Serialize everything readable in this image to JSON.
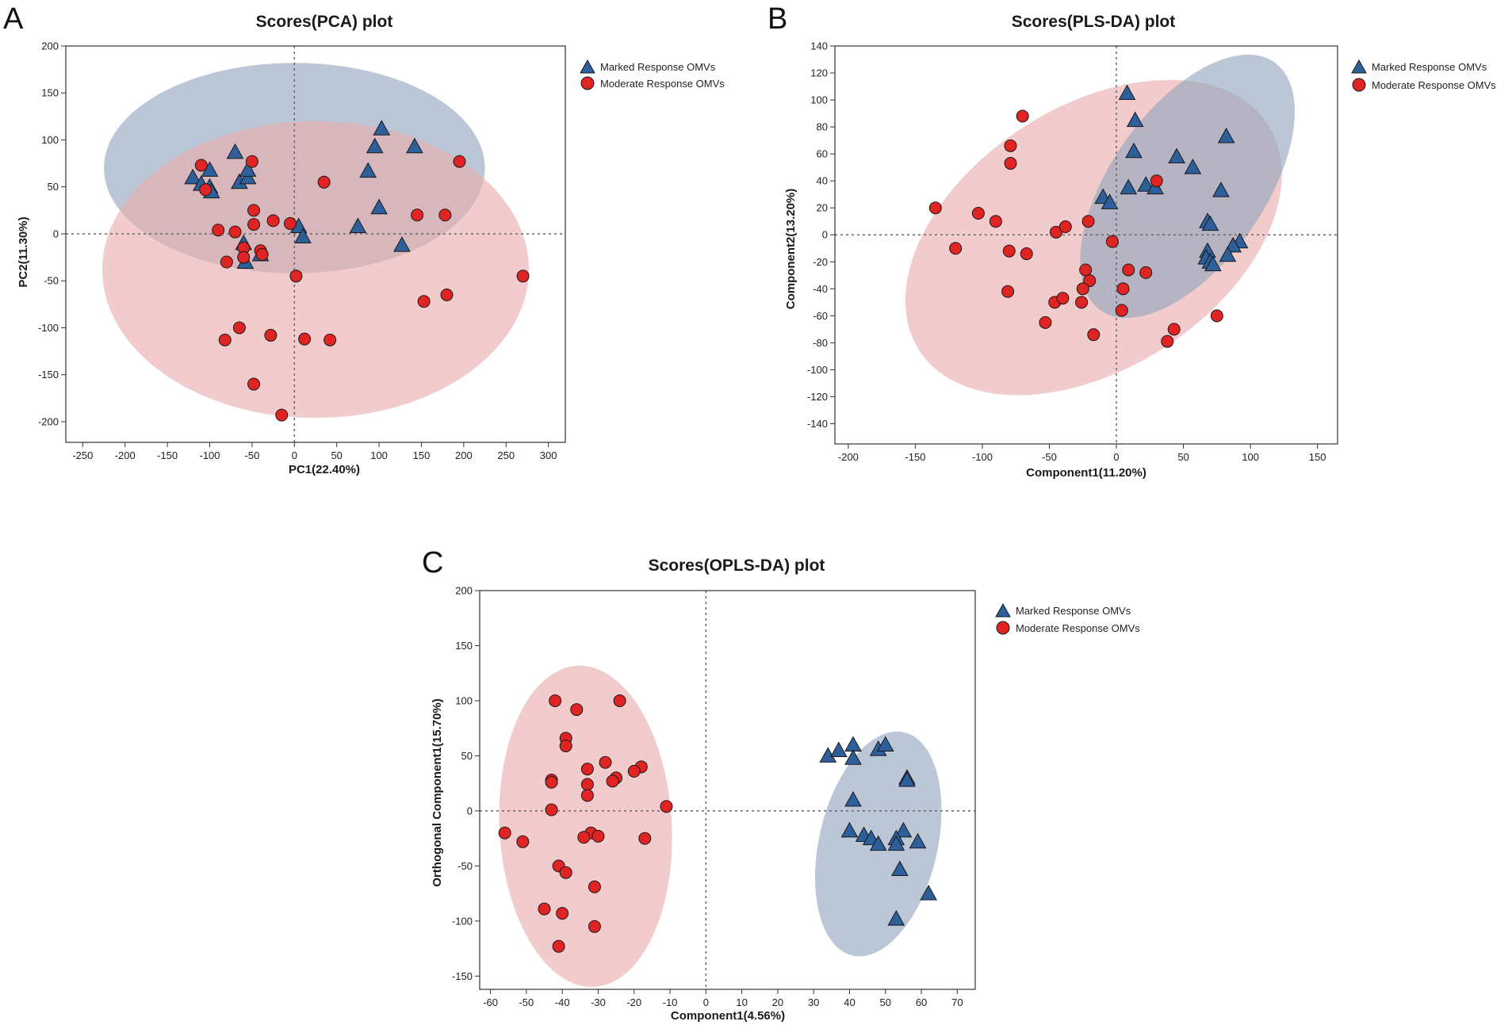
{
  "colors": {
    "marked_fill": "#2d5f9a",
    "moderate_fill": "#e02424",
    "marked_ellipse": "#8ea2bd",
    "moderate_ellipse": "#e9aaaa",
    "frame": "#333333",
    "dash": "#666666"
  },
  "chart_data": [
    {
      "type": "scatter",
      "panel_letter": "A",
      "title": "Scores(PCA) plot",
      "xlabel": "PC1(22.40%)",
      "ylabel": "PC2(11.30%)",
      "xlim": [
        -270,
        320
      ],
      "ylim": [
        -222,
        200
      ],
      "xticks": [
        -250,
        -200,
        -150,
        -100,
        -50,
        0,
        50,
        100,
        150,
        200,
        250,
        300
      ],
      "yticks": [
        200,
        150,
        100,
        50,
        0,
        -50,
        -100,
        -150,
        -200
      ],
      "legend": [
        "Marked Response OMVs",
        "Moderate Response OMVs"
      ],
      "legend_position": "top-right",
      "series": [
        {
          "name": "Marked Response OMVs",
          "marker": "triangle",
          "points": [
            [
              -120,
              60
            ],
            [
              -110,
              53
            ],
            [
              -100,
              68
            ],
            [
              -100,
              50
            ],
            [
              -98,
              45
            ],
            [
              -70,
              87
            ],
            [
              -65,
              55
            ],
            [
              -55,
              60
            ],
            [
              -55,
              68
            ],
            [
              -60,
              -10
            ],
            [
              -58,
              -30
            ],
            [
              -40,
              -22
            ],
            [
              5,
              8
            ],
            [
              10,
              -3
            ],
            [
              75,
              8
            ],
            [
              87,
              67
            ],
            [
              95,
              93
            ],
            [
              103,
              112
            ],
            [
              100,
              28
            ],
            [
              142,
              93
            ],
            [
              127,
              -12
            ]
          ]
        },
        {
          "name": "Moderate Response OMVs",
          "marker": "circle",
          "points": [
            [
              -110,
              73
            ],
            [
              -105,
              47
            ],
            [
              -90,
              4
            ],
            [
              -80,
              -30
            ],
            [
              -70,
              2
            ],
            [
              -60,
              -15
            ],
            [
              -60,
              -25
            ],
            [
              -50,
              77
            ],
            [
              -48,
              25
            ],
            [
              -48,
              10
            ],
            [
              -40,
              -18
            ],
            [
              -38,
              -22
            ],
            [
              -25,
              14
            ],
            [
              -5,
              11
            ],
            [
              2,
              -45
            ],
            [
              35,
              55
            ],
            [
              145,
              20
            ],
            [
              178,
              20
            ],
            [
              195,
              77
            ],
            [
              270,
              -45
            ],
            [
              153,
              -72
            ],
            [
              180,
              -65
            ],
            [
              -65,
              -100
            ],
            [
              -82,
              -113
            ],
            [
              -28,
              -108
            ],
            [
              12,
              -112
            ],
            [
              42,
              -113
            ],
            [
              -48,
              -160
            ],
            [
              -15,
              -193
            ]
          ]
        }
      ],
      "ellipses": [
        {
          "series": "Marked Response OMVs",
          "cx": 0,
          "cy": 70,
          "rx": 225,
          "ry": 112
        },
        {
          "series": "Moderate Response OMVs",
          "cx": 25,
          "cy": -38,
          "rx": 252,
          "ry": 158
        }
      ]
    },
    {
      "type": "scatter",
      "panel_letter": "B",
      "title": "Scores(PLS-DA) plot",
      "xlabel": "Component1(11.20%)",
      "ylabel": "Component2(13.20%)",
      "xlim": [
        -210,
        165
      ],
      "ylim": [
        -155,
        140
      ],
      "xticks": [
        -200,
        -150,
        -100,
        -50,
        0,
        50,
        100,
        150
      ],
      "yticks": [
        140,
        120,
        100,
        80,
        60,
        40,
        20,
        0,
        -20,
        -40,
        -60,
        -80,
        -100,
        -120,
        -140
      ],
      "legend": [
        "Marked Response OMVs",
        "Moderate Response OMVs"
      ],
      "legend_position": "top-right",
      "series": [
        {
          "name": "Marked Response OMVs",
          "marker": "triangle",
          "points": [
            [
              8,
              105
            ],
            [
              14,
              85
            ],
            [
              82,
              73
            ],
            [
              13,
              62
            ],
            [
              45,
              58
            ],
            [
              57,
              50
            ],
            [
              9,
              35
            ],
            [
              22,
              37
            ],
            [
              29,
              35
            ],
            [
              78,
              33
            ],
            [
              -10,
              28
            ],
            [
              -5,
              24
            ],
            [
              68,
              10
            ],
            [
              70,
              8
            ],
            [
              92,
              -5
            ],
            [
              87,
              -8
            ],
            [
              68,
              -12
            ],
            [
              67,
              -17
            ],
            [
              70,
              -20
            ],
            [
              72,
              -22
            ],
            [
              83,
              -15
            ]
          ]
        },
        {
          "name": "Moderate Response OMVs",
          "marker": "circle",
          "points": [
            [
              -70,
              88
            ],
            [
              -79,
              66
            ],
            [
              -79,
              53
            ],
            [
              -135,
              20
            ],
            [
              -103,
              16
            ],
            [
              -90,
              10
            ],
            [
              -120,
              -10
            ],
            [
              -80,
              -12
            ],
            [
              -67,
              -14
            ],
            [
              -45,
              2
            ],
            [
              -38,
              6
            ],
            [
              -21,
              10
            ],
            [
              -3,
              -5
            ],
            [
              30,
              40
            ],
            [
              -23,
              -26
            ],
            [
              -20,
              -34
            ],
            [
              -25,
              -40
            ],
            [
              -26,
              -50
            ],
            [
              -81,
              -42
            ],
            [
              -46,
              -50
            ],
            [
              -40,
              -47
            ],
            [
              -53,
              -65
            ],
            [
              -17,
              -74
            ],
            [
              9,
              -26
            ],
            [
              22,
              -28
            ],
            [
              5,
              -40
            ],
            [
              4,
              -56
            ],
            [
              43,
              -70
            ],
            [
              38,
              -79
            ],
            [
              75,
              -60
            ]
          ]
        }
      ],
      "ellipses": [
        {
          "series": "Moderate Response OMVs",
          "cx": -17,
          "cy": -2,
          "rx": 155,
          "ry": 97,
          "angle": 33
        },
        {
          "series": "Marked Response OMVs",
          "cx": 53,
          "cy": 36,
          "rx": 113,
          "ry": 57,
          "angle": 55
        }
      ]
    },
    {
      "type": "scatter",
      "panel_letter": "C",
      "title": "Scores(OPLS-DA) plot",
      "xlabel": "Component1(4.56%)",
      "ylabel": "Orthogonal Component1(15.70%)",
      "xlim": [
        -63,
        75
      ],
      "ylim": [
        -162,
        200
      ],
      "xticks": [
        -60,
        -50,
        -40,
        -30,
        -20,
        -10,
        0,
        10,
        20,
        30,
        40,
        50,
        60,
        70
      ],
      "yticks": [
        200,
        150,
        100,
        50,
        0,
        -50,
        -100,
        -150
      ],
      "legend": [
        "Marked Response OMVs",
        "Moderate Response OMVs"
      ],
      "legend_position": "top-right",
      "series": [
        {
          "name": "Marked Response OMVs",
          "marker": "triangle",
          "points": [
            [
              34,
              50
            ],
            [
              37,
              55
            ],
            [
              41,
              60
            ],
            [
              41,
              48
            ],
            [
              48,
              56
            ],
            [
              50,
              60
            ],
            [
              56,
              30
            ],
            [
              56,
              28
            ],
            [
              41,
              10
            ],
            [
              40,
              -18
            ],
            [
              44,
              -22
            ],
            [
              46,
              -25
            ],
            [
              48,
              -30
            ],
            [
              55,
              -18
            ],
            [
              53,
              -25
            ],
            [
              53,
              -30
            ],
            [
              59,
              -28
            ],
            [
              54,
              -53
            ],
            [
              62,
              -75
            ],
            [
              53,
              -98
            ]
          ]
        },
        {
          "name": "Moderate Response OMVs",
          "marker": "circle",
          "points": [
            [
              -42,
              100
            ],
            [
              -24,
              100
            ],
            [
              -36,
              92
            ],
            [
              -39,
              66
            ],
            [
              -39,
              59
            ],
            [
              -28,
              44
            ],
            [
              -18,
              40
            ],
            [
              -20,
              36
            ],
            [
              -33,
              38
            ],
            [
              -25,
              30
            ],
            [
              -26,
              27
            ],
            [
              -33,
              24
            ],
            [
              -43,
              28
            ],
            [
              -43,
              26
            ],
            [
              -33,
              14
            ],
            [
              -43,
              1
            ],
            [
              -11,
              4
            ],
            [
              -56,
              -20
            ],
            [
              -51,
              -28
            ],
            [
              -32,
              -20
            ],
            [
              -30,
              -23
            ],
            [
              -34,
              -24
            ],
            [
              -17,
              -25
            ],
            [
              -41,
              -50
            ],
            [
              -39,
              -56
            ],
            [
              -31,
              -69
            ],
            [
              -45,
              -89
            ],
            [
              -40,
              -93
            ],
            [
              -31,
              -105
            ],
            [
              -41,
              -123
            ]
          ]
        }
      ],
      "ellipses": [
        {
          "series": "Moderate Response OMVs",
          "cx": -33.5,
          "cy": -14,
          "rx": 24,
          "ry": 146,
          "angle": 3
        },
        {
          "series": "Marked Response OMVs",
          "cx": 48,
          "cy": -30,
          "rx": 16.5,
          "ry": 104,
          "angle": -13
        }
      ]
    }
  ]
}
